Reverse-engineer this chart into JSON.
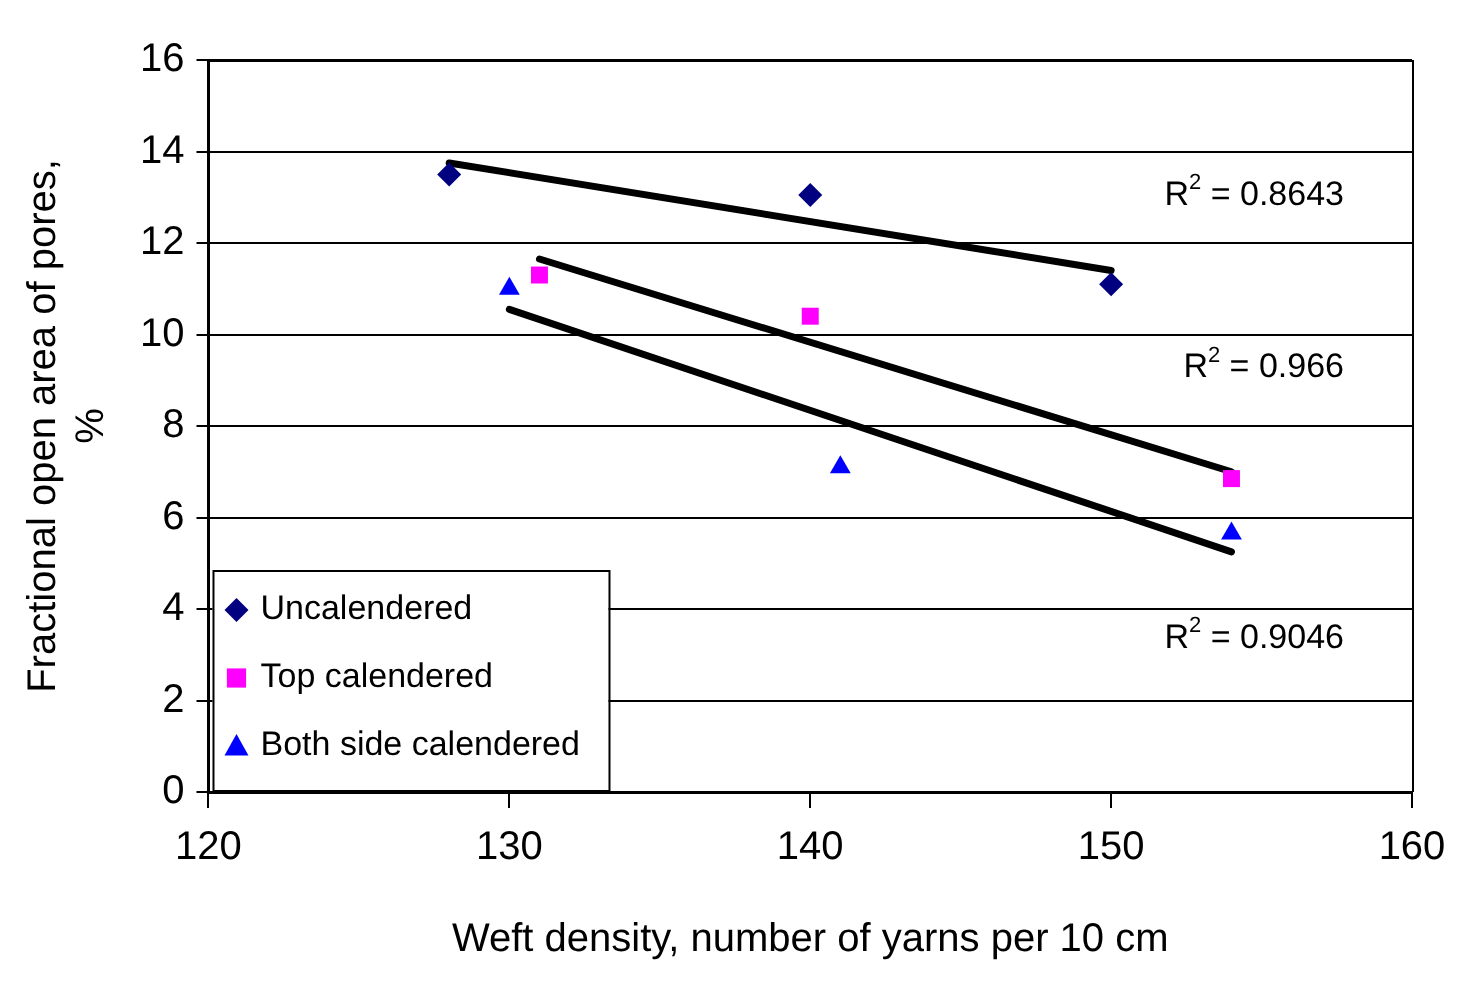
{
  "chart_data": {
    "type": "scatter",
    "xlabel": "Weft density, number of yarns per 10 cm",
    "ylabel": "Fractional open area of pores, %",
    "xlim": [
      120,
      160
    ],
    "xticks": [
      120,
      130,
      140,
      150,
      160
    ],
    "ylim": [
      0,
      16
    ],
    "yticks": [
      0,
      2,
      4,
      6,
      8,
      10,
      12,
      14,
      16
    ],
    "grid": "y",
    "legend": "bottom left",
    "series": [
      {
        "name": "Uncalendered",
        "color": "#000080",
        "marker": "diamond",
        "x": [
          128,
          140,
          150
        ],
        "values": [
          13.5,
          13.05,
          11.1
        ]
      },
      {
        "name": "Top calendered",
        "color": "#ff00ff",
        "marker": "square",
        "x": [
          131,
          140,
          154
        ],
        "values": [
          11.3,
          10.4,
          6.85
        ]
      },
      {
        "name": "Both side calendered",
        "color": "#0000ff",
        "marker": "triangle",
        "x": [
          130,
          141,
          154
        ],
        "values": [
          11.0,
          7.1,
          5.65
        ]
      },
      {
        "type": "line",
        "color": "#000000",
        "marker": "none",
        "x": [
          128,
          150
        ],
        "values": [
          13.75,
          11.4
        ]
      },
      {
        "type": "line",
        "color": "#000000",
        "marker": "none",
        "x": [
          131,
          154
        ],
        "values": [
          11.65,
          7.0
        ]
      },
      {
        "type": "line",
        "color": "#000000",
        "marker": "none",
        "x": [
          130,
          154
        ],
        "values": [
          10.55,
          5.25
        ]
      }
    ],
    "annotations": [
      "R$^{2}$ = 0.8643",
      "R$^{2}$ = 0.966",
      "R$^{2}$ = 0.9046"
    ]
  }
}
